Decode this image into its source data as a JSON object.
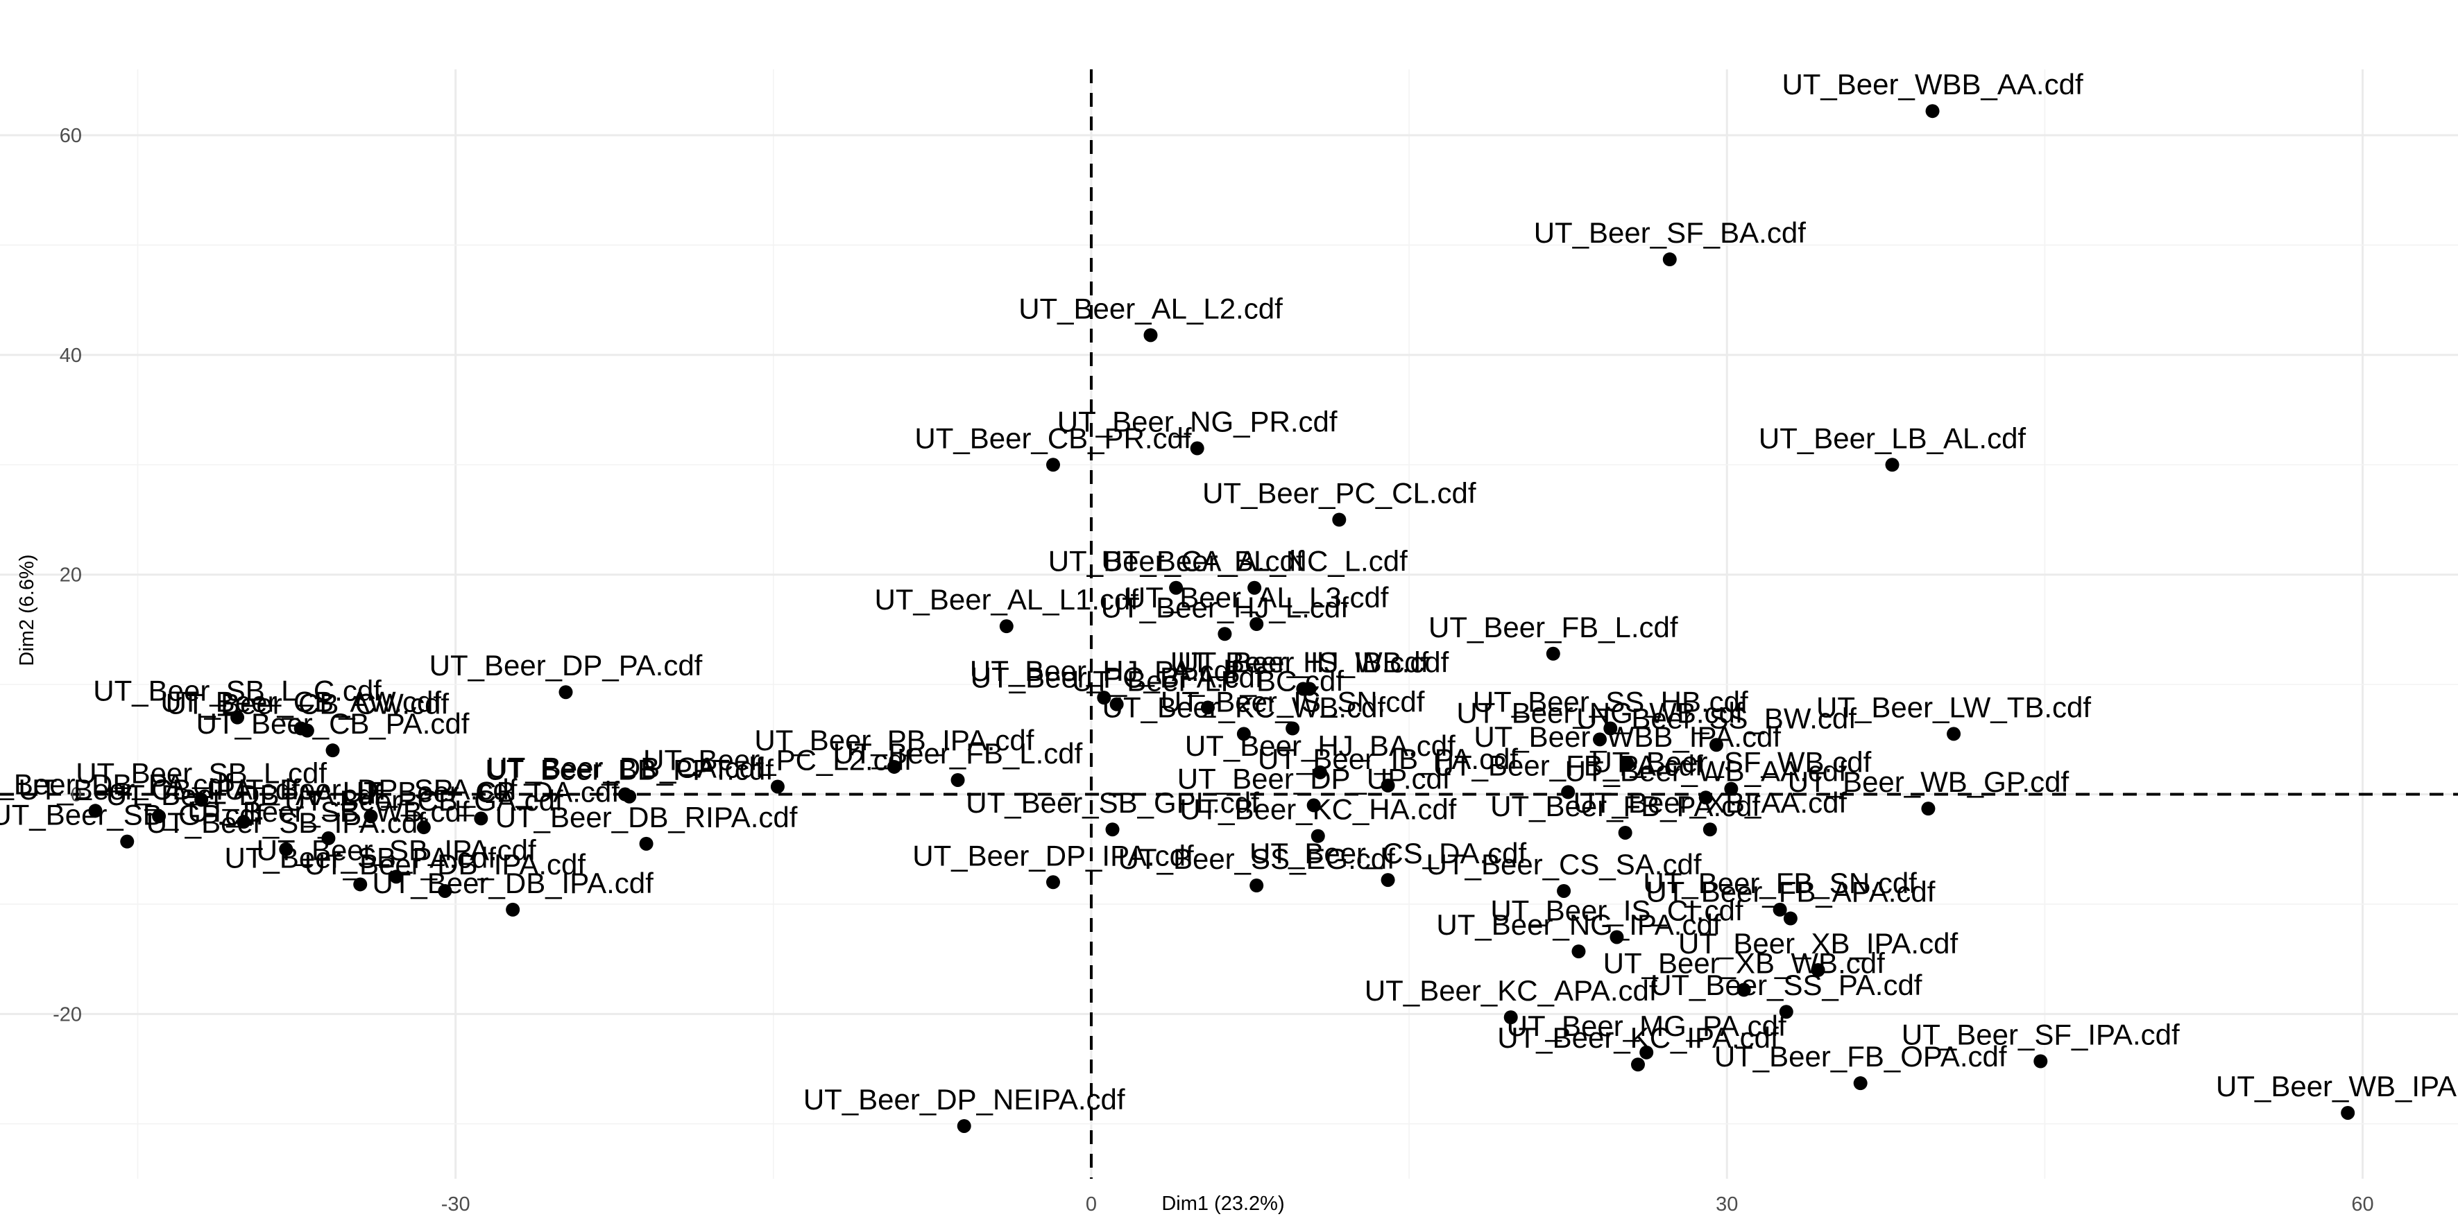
{
  "chart_data": {
    "type": "scatter",
    "xlabel": "Dim1 (23.2%)",
    "ylabel": "Dim2 (6.6%)",
    "xlim": [
      -51.5,
      64.5
    ],
    "ylim": [
      -35,
      66
    ],
    "x_ticks": [
      -30,
      0,
      30,
      60
    ],
    "y_ticks": [
      -20,
      0,
      20,
      40,
      60
    ],
    "x_tick_labels": [
      "-30",
      "0",
      "30",
      "60"
    ],
    "y_tick_labels": [
      "-20",
      "0",
      "20",
      "40",
      "60"
    ],
    "grid": true,
    "reference_lines": {
      "x": 0,
      "y": 0
    },
    "points": [
      {
        "label": "UT_Beer_WBB_AA.cdf",
        "x": 39.7,
        "y": 62.2
      },
      {
        "label": "UT_Beer_SF_BA.cdf",
        "x": 27.3,
        "y": 48.7
      },
      {
        "label": "UT_Beer_AL_L2.cdf",
        "x": 2.8,
        "y": 41.8
      },
      {
        "label": "UT_Beer_NG_PR.cdf",
        "x": 5.0,
        "y": 31.5
      },
      {
        "label": "UT_Beer_CB_PR.cdf",
        "x": -1.8,
        "y": 30.0
      },
      {
        "label": "UT_Beer_LB_AL.cdf",
        "x": 37.8,
        "y": 30.0
      },
      {
        "label": "UT_Beer_PC_CL.cdf",
        "x": 11.7,
        "y": 25.0
      },
      {
        "label": "UT_Beer_BL_NC_L.cdf",
        "x": 7.7,
        "y": 18.8
      },
      {
        "label": "UT_Beer_CA_A.cdf",
        "x": 4.0,
        "y": 18.8
      },
      {
        "label": "UT_Beer_AL_L3.cdf",
        "x": 7.8,
        "y": 15.5
      },
      {
        "label": "UT_Beer_HJ_L.cdf",
        "x": 6.3,
        "y": 14.6
      },
      {
        "label": "UT_Beer_AL_L1.cdf",
        "x": -4.0,
        "y": 15.3
      },
      {
        "label": "UT_Beer_FB_L.cdf",
        "x": 21.8,
        "y": 12.8
      },
      {
        "label": "UT_Beer_DP_PA.cdf",
        "x": -24.8,
        "y": 9.3
      },
      {
        "label": "UT_Beer_HJ_WB.cdf",
        "x": 10.3,
        "y": 9.6
      },
      {
        "label": "UT_Beer_IS_IB.cdf",
        "x": 10.0,
        "y": 9.6
      },
      {
        "label": "UT_Beer_HJ_PA.cdf",
        "x": 0.6,
        "y": 8.8
      },
      {
        "label": "UT_Beer_PC_BPA.cdf",
        "x": 1.2,
        "y": 8.2
      },
      {
        "label": "UT_Beer_LP_BC.cdf",
        "x": 5.5,
        "y": 7.9
      },
      {
        "label": "UT_Beer_IS_SN.cdf",
        "x": 9.5,
        "y": 6.0
      },
      {
        "label": "UT_Beer_SS_HB.cdf",
        "x": 24.5,
        "y": 6.0
      },
      {
        "label": "UT_Beer_NG_WB.cdf",
        "x": 24.0,
        "y": 5.0
      },
      {
        "label": "UT_Beer_SS_BW.cdf",
        "x": 29.5,
        "y": 4.5
      },
      {
        "label": "UT_Beer_LW_TB.cdf",
        "x": 40.7,
        "y": 5.5
      },
      {
        "label": "UT_Beer_KC_WB.cdf",
        "x": 7.2,
        "y": 5.5
      },
      {
        "label": "UT_Beer_SB_L_C.cdf",
        "x": -40.3,
        "y": 7.0
      },
      {
        "label": "UT_Beer_CB_AW.cdf",
        "x": -37.3,
        "y": 6.0
      },
      {
        "label": "UT_Beer_CB_CW.cdf",
        "x": -37.0,
        "y": 5.8
      },
      {
        "label": "UT_Beer_CB_PA.cdf",
        "x": -35.8,
        "y": 4.0
      },
      {
        "label": "UT_Beer_PB_IPA.cdf",
        "x": -9.3,
        "y": 2.5
      },
      {
        "label": "UT_Beer_PC_L2.cdf",
        "x": -14.8,
        "y": 0.7
      },
      {
        "label": "UT_Beer_FB_L.cdf",
        "x": -6.3,
        "y": 1.3
      },
      {
        "label": "UT_Beer_BB_PPT.cdf",
        "x": -21.8,
        "y": -0.2
      },
      {
        "label": "UT_Beer_DB_CA.cdf",
        "x": -22.0,
        "y": 0.0
      },
      {
        "label": "UT_Beer_DB_RIPA.cdf",
        "x": -21.0,
        "y": -4.5
      },
      {
        "label": "UT_Beer_WBB_IPA.cdf",
        "x": 25.3,
        "y": 2.8
      },
      {
        "label": "UT_Beer_SF_WB.cdf",
        "x": 30.2,
        "y": 0.5
      },
      {
        "label": "UT_Beer_WB_GP.cdf",
        "x": 39.5,
        "y": -1.3
      },
      {
        "label": "UT_Beer_IB_PA.cdf",
        "x": 14.0,
        "y": 0.8
      },
      {
        "label": "UT_Beer_HJ_BA.cdf",
        "x": 10.8,
        "y": 2.0
      },
      {
        "label": "UT_Beer_FB_PA.cdf",
        "x": 22.5,
        "y": 0.2
      },
      {
        "label": "UT_Beer_WB_AA.cdf",
        "x": 29.0,
        "y": -0.3
      },
      {
        "label": "UT_Beer_SB_GPL.cdf",
        "x": 1.0,
        "y": -3.2
      },
      {
        "label": "UT_Beer_DP_UP.cdf",
        "x": 10.5,
        "y": -1.0
      },
      {
        "label": "UT_Beer_KC_HA.cdf",
        "x": 10.7,
        "y": -3.8
      },
      {
        "label": "UT_Beer_FB_PA.cdf",
        "x": 25.2,
        "y": -3.5
      },
      {
        "label": "UT_Beer_DP_IPA.cdf",
        "x": -1.8,
        "y": -8.0
      },
      {
        "label": "UT_Beer_SS_EG.cdf",
        "x": 7.8,
        "y": -8.3
      },
      {
        "label": "UT_Beer_CS_DA.cdf",
        "x": 14.0,
        "y": -7.8
      },
      {
        "label": "UT_Beer_CS_SA.cdf",
        "x": 22.3,
        "y": -8.8
      },
      {
        "label": "UT_Beer_XB_AA.cdf",
        "x": 29.2,
        "y": -3.2
      },
      {
        "label": "UT_Beer_FB_SN.cdf",
        "x": 32.5,
        "y": -10.5
      },
      {
        "label": "UT_Beer_FB_APA.cdf",
        "x": 33.0,
        "y": -11.3
      },
      {
        "label": "UT_Beer_NG_IPA.cdf",
        "x": 23.0,
        "y": -14.3
      },
      {
        "label": "UT_Beer_IS_CI.cdf",
        "x": 24.8,
        "y": -13.0
      },
      {
        "label": "UT_Beer_XB_IPA.cdf",
        "x": 34.3,
        "y": -16.0
      },
      {
        "label": "UT_Beer_XB_WB.cdf",
        "x": 30.8,
        "y": -17.8
      },
      {
        "label": "UT_Beer_SS_PA.cdf",
        "x": 32.8,
        "y": -19.8
      },
      {
        "label": "UT_Beer_KC_APA.cdf",
        "x": 19.8,
        "y": -20.3
      },
      {
        "label": "UT_Beer_MG_PA.cdf",
        "x": 26.2,
        "y": -23.5
      },
      {
        "label": "UT_Beer_KC_IPA.cdf",
        "x": 25.8,
        "y": -24.6
      },
      {
        "label": "UT_Beer_SF_IPA.cdf",
        "x": 44.8,
        "y": -24.3
      },
      {
        "label": "UT_Beer_FB_OPA.cdf",
        "x": 36.3,
        "y": -26.3
      },
      {
        "label": "UT_Beer_WB_IPA",
        "x": 59.3,
        "y": -29.0
      },
      {
        "label": "UT_Beer_DP_NEIPA.cdf",
        "x": -6.0,
        "y": -30.2
      },
      {
        "label": "UT_Beer_DB_IPA.cdf",
        "x": -27.3,
        "y": -10.5
      },
      {
        "label": "UT_Beer_SB_IPA.cdf",
        "x": -32.8,
        "y": -7.5
      },
      {
        "label": "UT_Beer_DB_IPA.cdf",
        "x": -30.5,
        "y": -8.8
      },
      {
        "label": "UT_Beer_SB_PA.cdf",
        "x": -34.5,
        "y": -8.2
      },
      {
        "label": "UT_Beer_SB_IPA.cdf",
        "x": -38.0,
        "y": -5.0
      },
      {
        "label": "UT_Beer_DP_SPA.cdf",
        "x": -34.0,
        "y": -2.0
      },
      {
        "label": "UT_Beer_SB_GP.cdf",
        "x": -45.5,
        "y": -4.3
      },
      {
        "label": "UT_Beer_DB_PA.cdf",
        "x": -47.0,
        "y": -1.5
      },
      {
        "label": "UT_Beer_CB_IPA.cdf",
        "x": -44.0,
        "y": -2.0
      },
      {
        "label": "UT_Beer_DB_AA.cdf",
        "x": -40.0,
        "y": -2.5
      },
      {
        "label": "UT_Beer_SB_WB.cdf",
        "x": -36.0,
        "y": -4.0
      },
      {
        "label": "UT_Beer_CB_GA.cdf",
        "x": -31.5,
        "y": -3.0
      },
      {
        "label": "UT_Beer_SB_L.cdf",
        "x": -42.0,
        "y": -0.5
      },
      {
        "label": "UT_Beer_CB_DA.cdf",
        "x": -28.8,
        "y": -2.2
      }
    ]
  }
}
